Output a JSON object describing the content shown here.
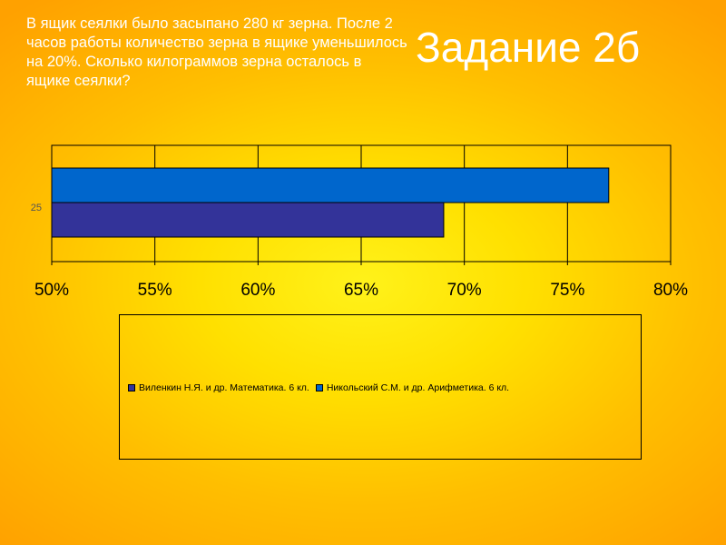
{
  "slide": {
    "question": "В ящик сеялки было засыпано 280  кг зерна. После 2 часов работы количество зерна в ящике уменьшилось на 20%. Сколько килограммов зерна осталось в ящике сеялки?",
    "title": "Задание 2б"
  },
  "colors": {
    "series_1": "#333399",
    "series_2": "#0066cc"
  },
  "chart_data": {
    "type": "bar",
    "orientation": "horizontal",
    "categories": [
      "25"
    ],
    "series": [
      {
        "name": "Виленкин Н.Я. и др. Математика. 6 кл.",
        "values": [
          0.69
        ],
        "color": "#333399"
      },
      {
        "name": "Никольский С.М. и др. Арифметика. 6 кл.",
        "values": [
          0.77
        ],
        "color": "#0066cc"
      }
    ],
    "xlim": [
      0.5,
      0.8
    ],
    "x_ticks": [
      0.5,
      0.55,
      0.6,
      0.65,
      0.7,
      0.75,
      0.8
    ],
    "x_tick_labels": [
      "50%",
      "55%",
      "60%",
      "65%",
      "70%",
      "75%",
      "80%"
    ],
    "grid": true,
    "legend_position": "bottom"
  }
}
